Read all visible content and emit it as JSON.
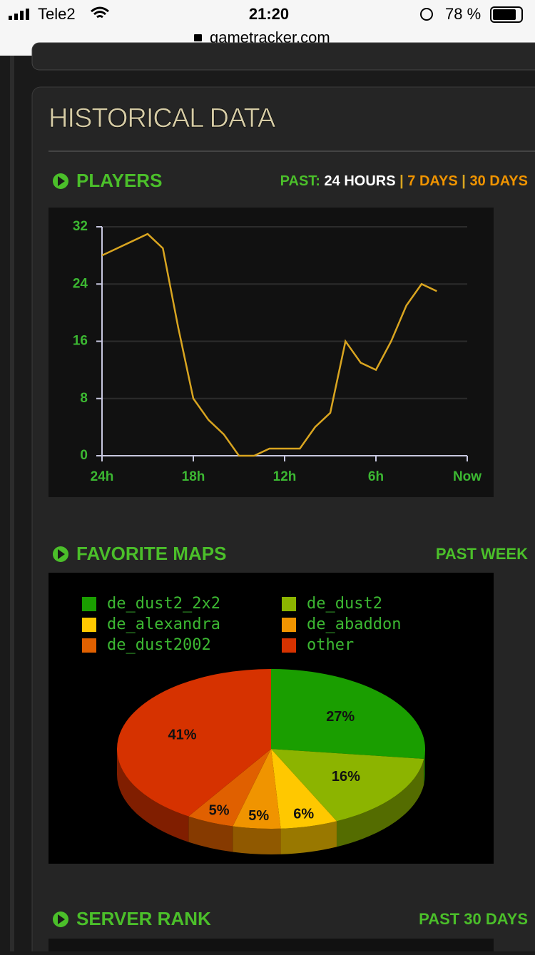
{
  "status_bar": {
    "carrier": "Tele2",
    "time": "21:20",
    "battery": "78 %",
    "url": "gametracker.com"
  },
  "section_title": "HISTORICAL DATA",
  "players": {
    "title": "PLAYERS",
    "range_label": "PAST:",
    "ranges": [
      "24 HOURS",
      "7 DAYS",
      "30 DAYS"
    ],
    "separator": "|"
  },
  "maps": {
    "title": "FAVORITE MAPS",
    "range": "PAST WEEK"
  },
  "rank": {
    "title": "SERVER RANK",
    "range": "PAST 30 DAYS"
  },
  "chart_data": [
    {
      "type": "line",
      "x": [
        -24,
        -23,
        -22,
        -21,
        -20,
        -19,
        -18,
        -17,
        -16,
        -15,
        -14,
        -13,
        -12,
        -11,
        -10,
        -9,
        -8,
        -7,
        -6,
        -5,
        -4,
        -3,
        -2
      ],
      "values": [
        28,
        29,
        30,
        31,
        29,
        18,
        8,
        5,
        3,
        0,
        0,
        1,
        1,
        1,
        4,
        6,
        16,
        13,
        12,
        16,
        21,
        24,
        23
      ],
      "color": "#d9a520",
      "xlim": [
        -24,
        0
      ],
      "xticks": [
        {
          "value": -24,
          "label": "24h"
        },
        {
          "value": -18,
          "label": "18h"
        },
        {
          "value": -12,
          "label": "12h"
        },
        {
          "value": -6,
          "label": "6h"
        },
        {
          "value": 0,
          "label": "Now"
        }
      ],
      "ylim": [
        0,
        32
      ],
      "yticks": [
        0,
        8,
        16,
        24,
        32
      ],
      "grid": true
    },
    {
      "type": "pie",
      "categories": [
        "de_dust2_2x2",
        "de_dust2",
        "de_alexandra",
        "de_abaddon",
        "de_dust2002",
        "other"
      ],
      "values": [
        27,
        16,
        6,
        5,
        5,
        41
      ],
      "value_labels": [
        "27%",
        "16%",
        "6%",
        "5%",
        "5%",
        "41%"
      ],
      "colors": [
        "#1a9e00",
        "#8cb400",
        "#ffc800",
        "#f09400",
        "#e06000",
        "#d63200"
      ]
    }
  ]
}
